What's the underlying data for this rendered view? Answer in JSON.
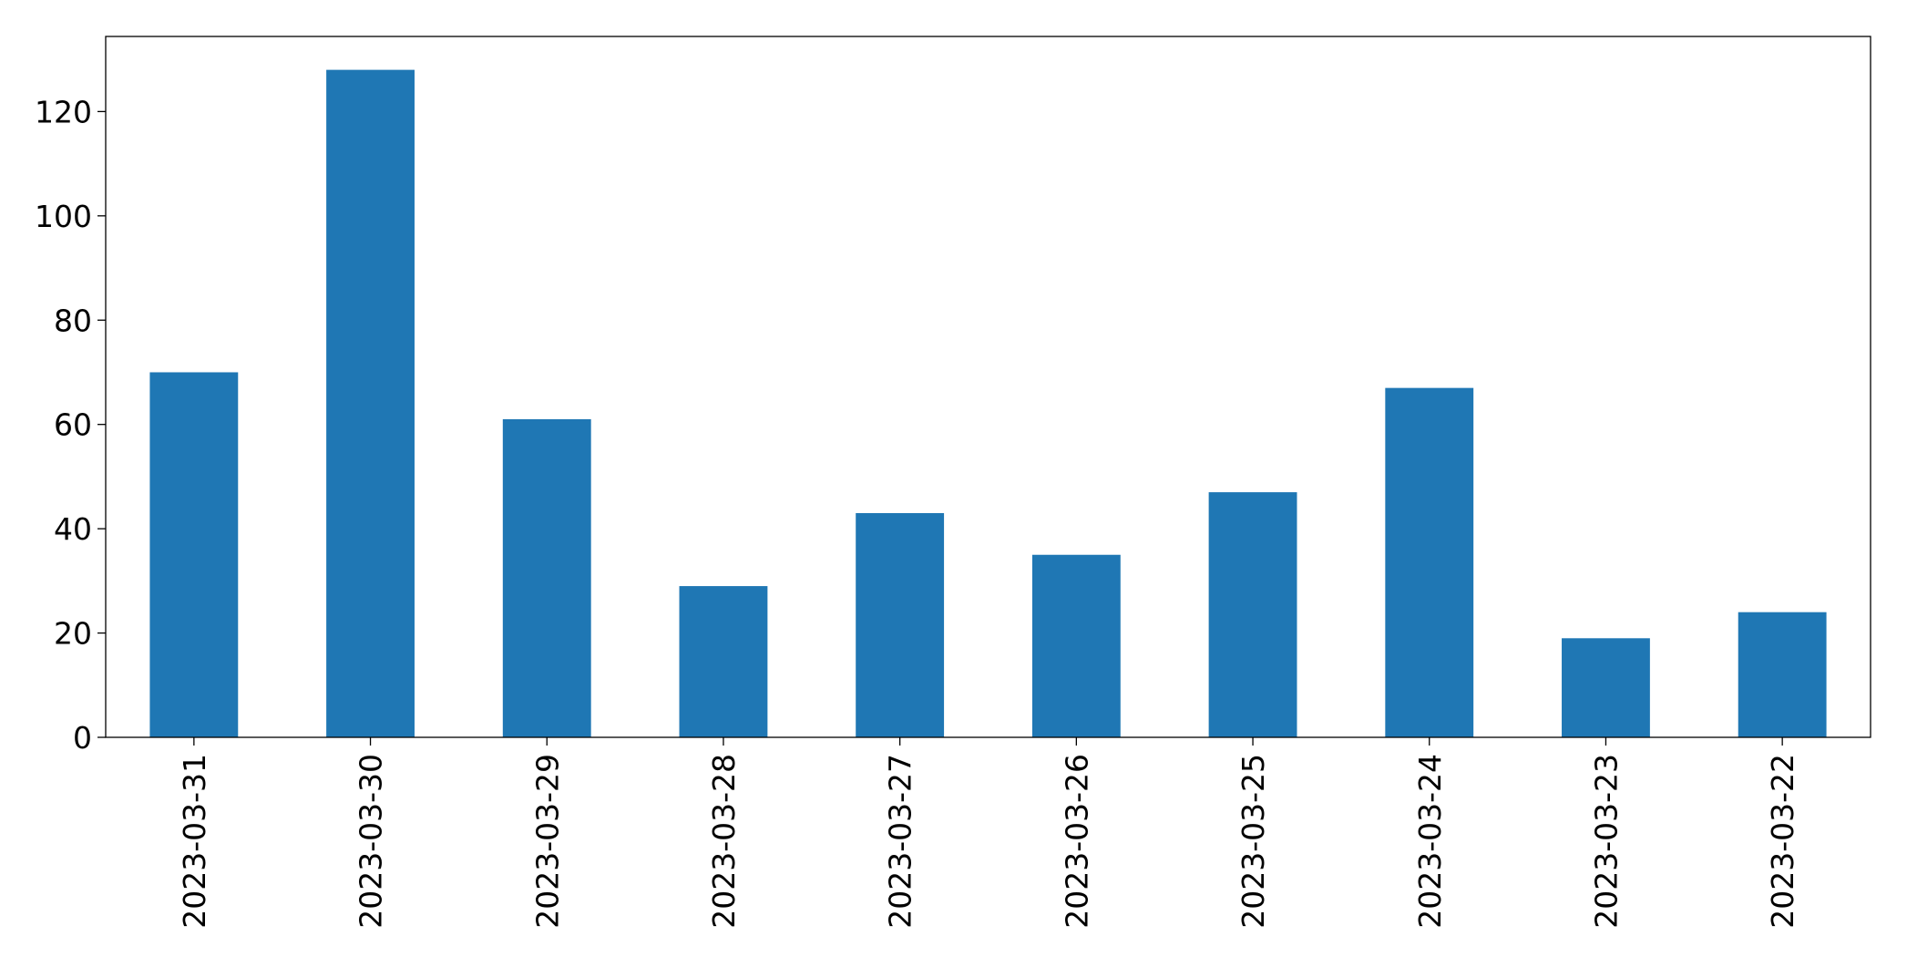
{
  "chart_data": {
    "type": "bar",
    "categories": [
      "2023-03-31",
      "2023-03-30",
      "2023-03-29",
      "2023-03-28",
      "2023-03-27",
      "2023-03-26",
      "2023-03-25",
      "2023-03-24",
      "2023-03-23",
      "2023-03-22"
    ],
    "values": [
      70,
      128,
      61,
      29,
      43,
      35,
      47,
      67,
      19,
      24
    ],
    "color": "#1f77b4",
    "ylim": [
      0,
      134.4
    ],
    "yticks": [
      0,
      20,
      40,
      60,
      80,
      100,
      120
    ],
    "grid": false
  }
}
